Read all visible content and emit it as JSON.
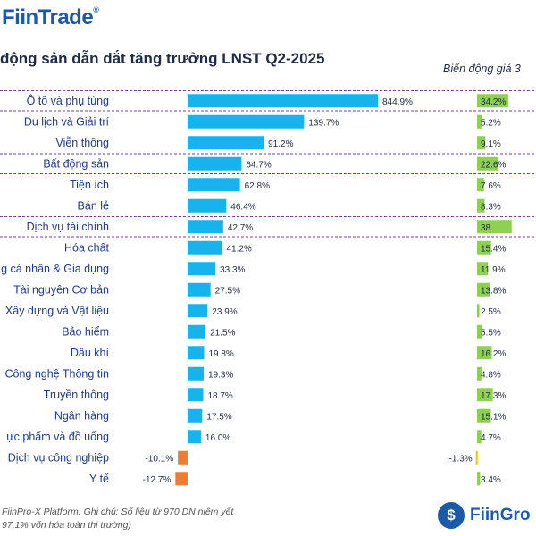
{
  "logo_top": "FiinTrade",
  "logo_top_mark": "®",
  "title": "động sản dẫn dắt tăng trưởng LNST Q2-2025",
  "subtitle": "Biến động giá 3",
  "footer": {
    "line1": "FiinPro-X Platform. Ghi chú: Số liệu từ 970 DN niêm yết",
    "line2": "97,1% vốn hóa toàn thị trường)"
  },
  "logo_bottom": "FiinGro",
  "colors": {
    "growth_positive": "#16b3ec",
    "growth_negative": "#ee7d31",
    "price_positive": "#8dd052",
    "price_negative": "#f2c300"
  },
  "chart_data": {
    "type": "bar",
    "categories": [
      "Ô tô và phụ tùng",
      "Du lịch và Giải trí",
      "Viễn thông",
      "Bất động sản",
      "Tiện ích",
      "Bán lẻ",
      "Dịch vụ tài chính",
      "Hóa chất",
      "g cá nhân & Gia dụng",
      "Tài nguyên Cơ bản",
      "Xây dựng và Vật liệu",
      "Bảo hiểm",
      "Dầu khí",
      "Công nghệ Thông tin",
      "Truyền thông",
      "Ngân hàng",
      "ực phẩm và đồ uống",
      "Dịch vụ công nghiệp",
      "Y tế"
    ],
    "highlighted": [
      "Ô tô và phụ tùng",
      "Bất động sản",
      "Dịch vụ tài chính"
    ],
    "series": [
      {
        "values": [
          844.9,
          139.7,
          91.2,
          64.7,
          62.8,
          46.4,
          42.7,
          41.2,
          33.3,
          27.5,
          23.9,
          21.5,
          19.8,
          19.3,
          18.7,
          17.5,
          16.0,
          -10.1,
          -12.7
        ],
        "labels": [
          "844.9%",
          "139.7%",
          "91.2%",
          "64.7%",
          "62.8%",
          "46.4%",
          "42.7%",
          "41.2%",
          "33.3%",
          "27.5%",
          "23.9%",
          "21.5%",
          "19.8%",
          "19.3%",
          "18.7%",
          "17.5%",
          "16.0%",
          "-10.1%",
          "-12.7%"
        ]
      },
      {
        "values": [
          34.2,
          5.2,
          9.1,
          22.6,
          7.6,
          8.3,
          38.0,
          15.4,
          11.9,
          13.8,
          2.5,
          5.5,
          16.2,
          4.8,
          17.3,
          15.1,
          4.7,
          -1.3,
          3.4
        ],
        "labels": [
          "34.2%",
          "5.2%",
          "9.1%",
          "22.6%",
          "7.6%",
          "8.3%",
          "38.",
          "15.4%",
          "11.9%",
          "13.8%",
          "2.5%",
          "5.5%",
          "16.2%",
          "4.8%",
          "17.3%",
          "15.1%",
          "4.7%",
          "-1.3%",
          "3.4%"
        ]
      }
    ],
    "grid": false
  }
}
